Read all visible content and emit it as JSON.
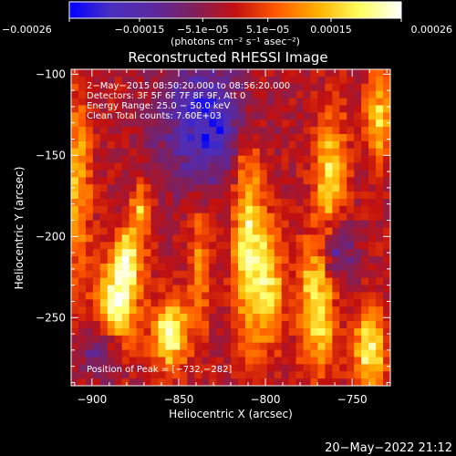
{
  "chart_data": {
    "type": "heatmap",
    "title": "Reconstructed RHESSI Image",
    "xlabel": "Heliocentric X (arcsec)",
    "ylabel": "Heliocentric Y (arcsec)",
    "xlim": [
      -912,
      -728
    ],
    "ylim": [
      -292,
      -97
    ],
    "x_ticks": [
      -900,
      -850,
      -800,
      -750
    ],
    "y_ticks": [
      -250,
      -200,
      -150,
      -100
    ],
    "x_tick_labels": [
      "−900",
      "−850",
      "−800",
      "−750"
    ],
    "y_tick_labels": [
      "−250",
      "−200",
      "−150",
      "−100"
    ],
    "colorbar": {
      "range": [
        -0.00026,
        0.00026
      ],
      "tick_values": [
        -0.00026,
        -0.00015,
        -5.1e-05,
        5.1e-05,
        0.00015,
        0.00026
      ],
      "tick_labels": [
        "−0.00026",
        "−0.00015",
        "−5.1e−05",
        "5.1e−05",
        "0.00015",
        "0.00026"
      ],
      "unit_label": "(photons cm⁻² s⁻¹ asec⁻²)",
      "colors": [
        "#0000ff",
        "#4a2fc0",
        "#5a28a0",
        "#80205a",
        "#c21010",
        "#ff5a00",
        "#ffb000",
        "#ffff60",
        "#ffffff"
      ]
    },
    "annotations": [
      " 2−May−2015 08:50:20.000 to 08:56:20.000",
      "Detectors: 3F 5F 6F 7F 8F 9F, Att 0",
      "Energy Range: 25.0 − 50.0 keV",
      "Clean     Total counts: 7.60E+03"
    ],
    "peak_label": "Position of Peak = [−732,−282]",
    "peak_position": [
      -732,
      -282
    ],
    "sources": [
      {
        "x": -885,
        "y": -240,
        "sx": 8,
        "sy": 18,
        "peak": 1.0
      },
      {
        "x": -879,
        "y": -212,
        "sx": 6,
        "sy": 12,
        "peak": 0.75
      },
      {
        "x": -872,
        "y": -182,
        "sx": 4,
        "sy": 10,
        "peak": 0.6
      },
      {
        "x": -908,
        "y": -170,
        "sx": 5,
        "sy": 40,
        "peak": 0.55
      },
      {
        "x": -855,
        "y": -260,
        "sx": 7,
        "sy": 14,
        "peak": 0.95
      },
      {
        "x": -838,
        "y": -218,
        "sx": 4,
        "sy": 30,
        "peak": 0.45
      },
      {
        "x": -810,
        "y": -200,
        "sx": 6,
        "sy": 45,
        "peak": 0.8
      },
      {
        "x": -798,
        "y": -230,
        "sx": 6,
        "sy": 25,
        "peak": 0.7
      },
      {
        "x": -770,
        "y": -240,
        "sx": 7,
        "sy": 30,
        "peak": 0.9
      },
      {
        "x": -762,
        "y": -160,
        "sx": 6,
        "sy": 25,
        "peak": 0.75
      },
      {
        "x": -740,
        "y": -270,
        "sx": 6,
        "sy": 18,
        "peak": 0.9
      },
      {
        "x": -735,
        "y": -125,
        "sx": 5,
        "sy": 20,
        "peak": 0.65
      }
    ],
    "negative_regions": [
      {
        "x": -835,
        "y": -130,
        "sx": 18,
        "sy": 25,
        "depth": 0.8
      },
      {
        "x": -760,
        "y": -210,
        "sx": 8,
        "sy": 15,
        "depth": 0.6
      },
      {
        "x": -895,
        "y": -270,
        "sx": 8,
        "sy": 12,
        "depth": 0.4
      }
    ]
  },
  "footer": {
    "timestamp": "20−May−2022 21:12"
  }
}
